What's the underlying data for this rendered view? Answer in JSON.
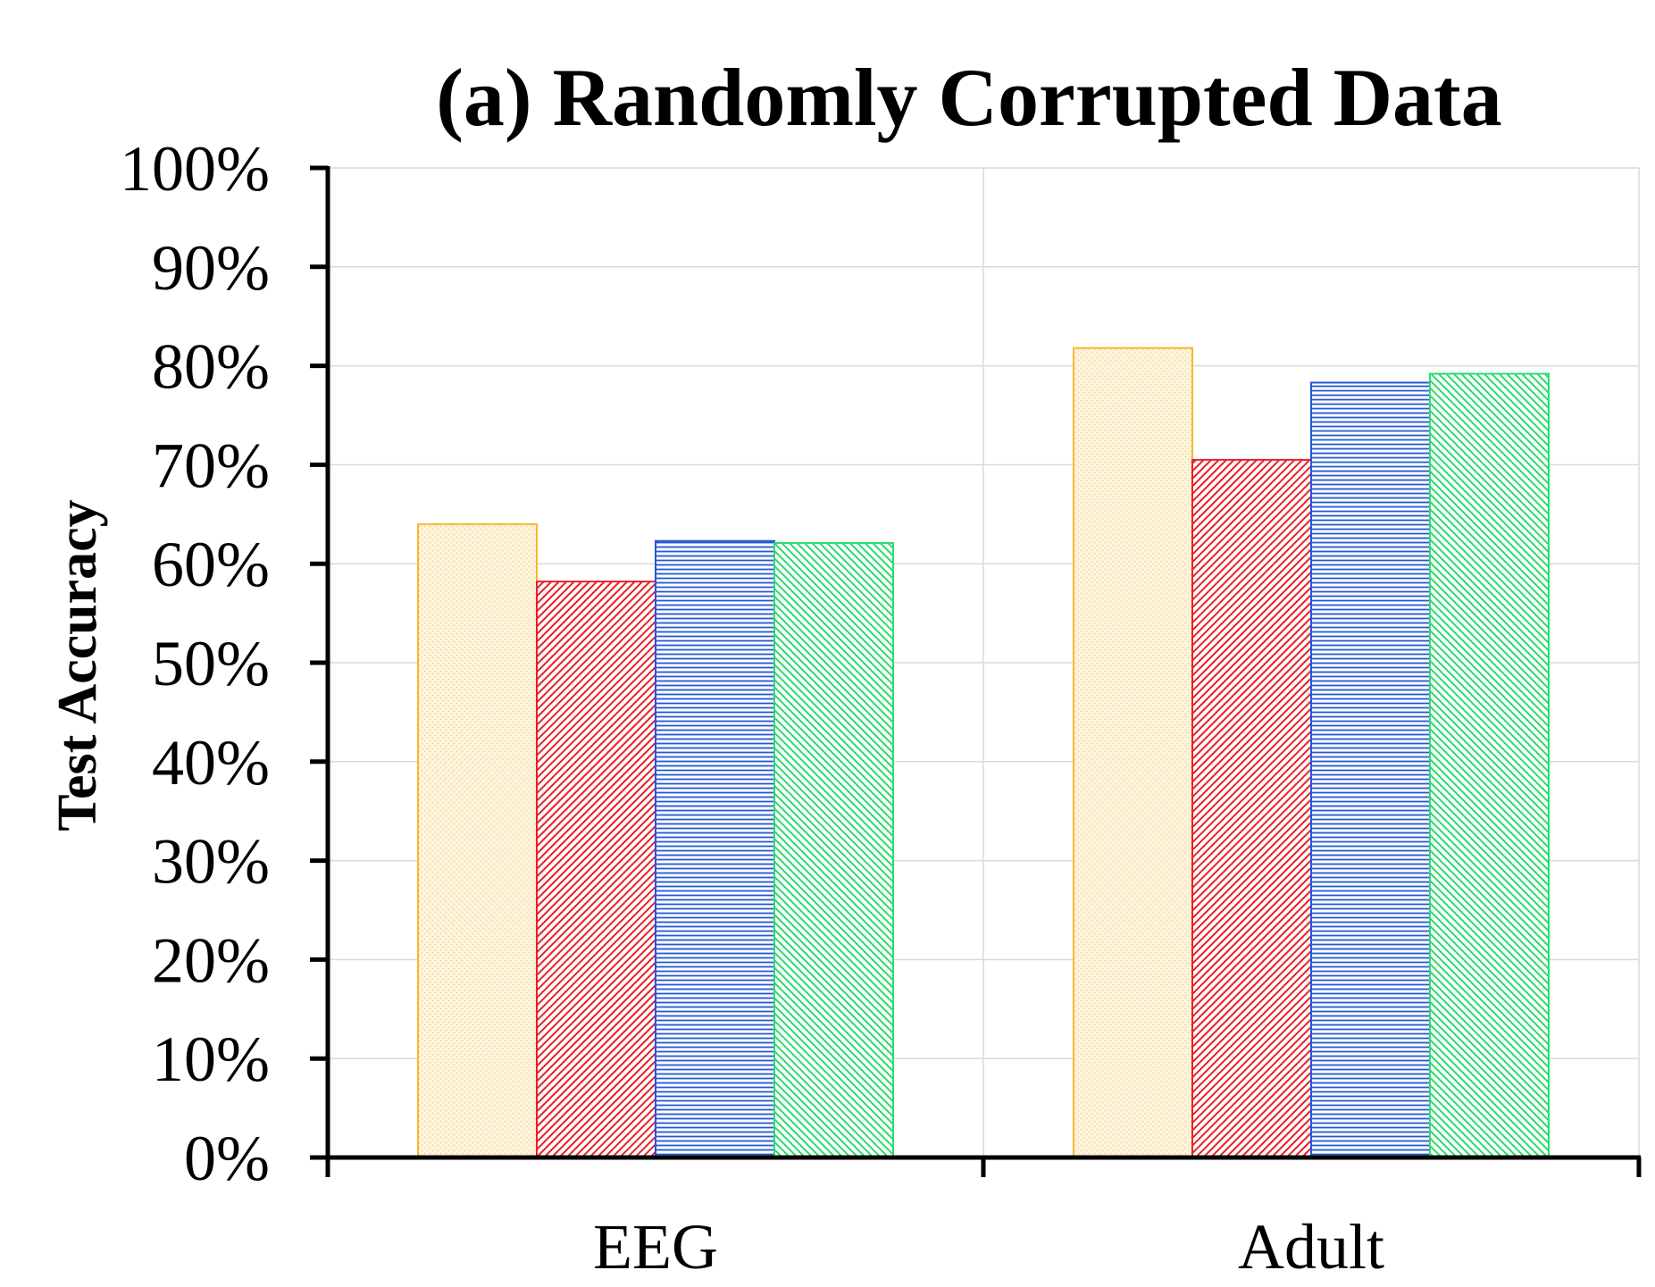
{
  "chart_data": {
    "type": "bar",
    "title": "(a) Randomly Corrupted Data",
    "xlabel": "",
    "ylabel": "Test Accuracy",
    "ylim": [
      0,
      1
    ],
    "yticks": [
      "0%",
      "10%",
      "20%",
      "30%",
      "40%",
      "50%",
      "60%",
      "70%",
      "80%",
      "90%",
      "100%"
    ],
    "categories": [
      "EEG",
      "Adult"
    ],
    "grid": true,
    "legend": "none",
    "series": [
      {
        "values": [
          0.64,
          0.818
        ],
        "color": "#F5B82E",
        "pattern": "dots"
      },
      {
        "values": [
          0.582,
          0.705
        ],
        "color": "#E8202A",
        "pattern": "diagonal-up"
      },
      {
        "values": [
          0.623,
          0.783
        ],
        "color": "#2457D6",
        "pattern": "horizontal"
      },
      {
        "values": [
          0.621,
          0.792
        ],
        "color": "#2BDB6E",
        "pattern": "diagonal-down"
      }
    ]
  }
}
